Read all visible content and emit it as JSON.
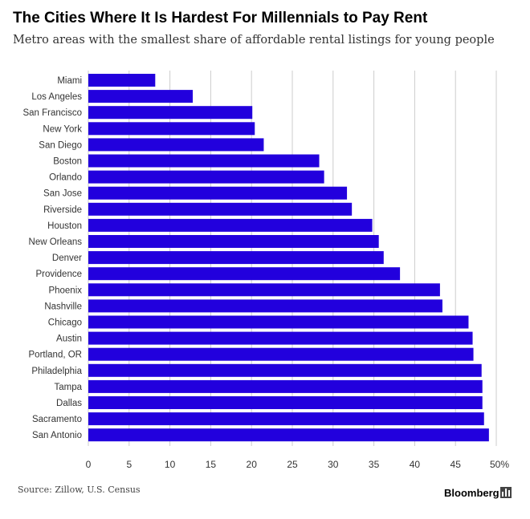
{
  "header": {
    "title": "The Cities Where It Is Hardest For Millennials to Pay Rent",
    "subtitle": "Metro areas with the smallest share of affordable rental listings for young people"
  },
  "footer": {
    "source": "Source: Zillow, U.S. Census",
    "brand": "Bloomberg"
  },
  "colors": {
    "bar": "#2200dd",
    "grid": "#cccccc",
    "text": "#333333"
  },
  "chart_data": {
    "type": "bar",
    "orientation": "horizontal",
    "categories": [
      "Miami",
      "Los Angeles",
      "San Francisco",
      "New York",
      "San Diego",
      "Boston",
      "Orlando",
      "San Jose",
      "Riverside",
      "Houston",
      "New Orleans",
      "Denver",
      "Providence",
      "Phoenix",
      "Nashville",
      "Chicago",
      "Austin",
      "Portland, OR",
      "Philadelphia",
      "Tampa",
      "Dallas",
      "Sacramento",
      "San Antonio"
    ],
    "values": [
      8.2,
      12.8,
      20.1,
      20.4,
      21.5,
      28.3,
      28.9,
      31.7,
      32.3,
      34.8,
      35.6,
      36.2,
      38.2,
      43.1,
      43.4,
      46.6,
      47.1,
      47.2,
      48.2,
      48.3,
      48.3,
      48.5,
      49.1
    ],
    "xticks": [
      "0",
      "5",
      "10",
      "15",
      "20",
      "25",
      "30",
      "35",
      "40",
      "45",
      "50%"
    ],
    "xlim": [
      0,
      50
    ],
    "grid": true
  }
}
